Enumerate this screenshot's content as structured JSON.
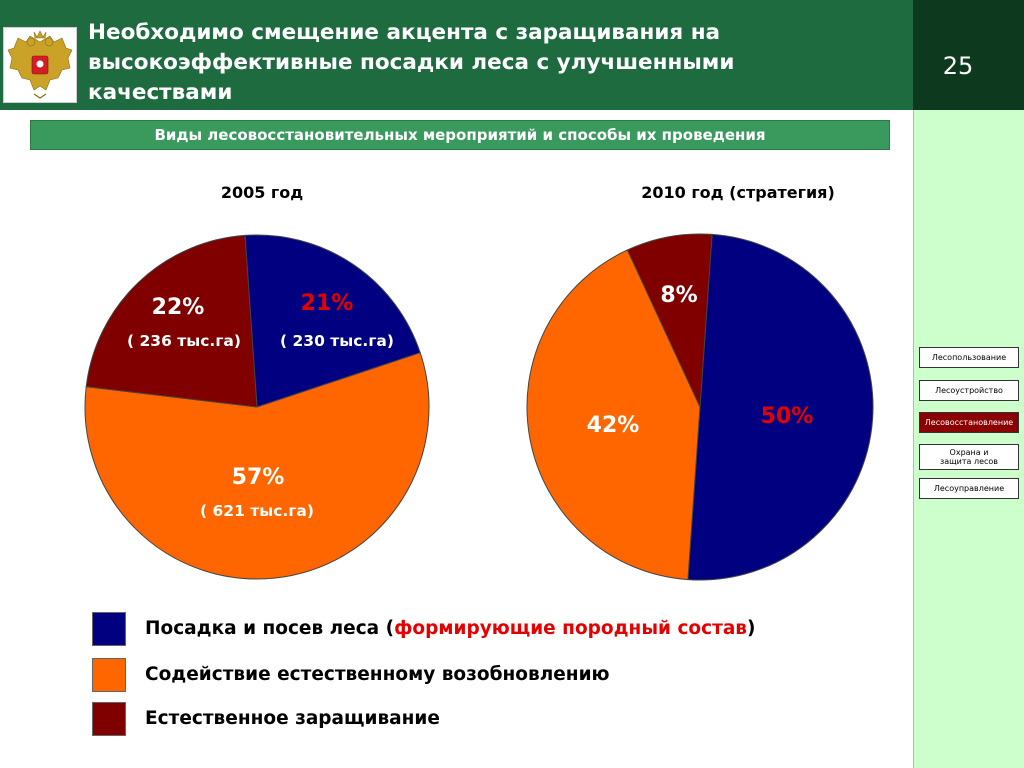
{
  "header": {
    "title": "Необходимо смещение акцента с заращивания на\nвысокоэффективные посадки леса с улучшенными\nкачествами",
    "page_number": "25"
  },
  "subtitle": "Виды лесовосстановительных мероприятий и способы их проведения",
  "colors": {
    "blue": "#000080",
    "orange": "#ff6600",
    "maroon": "#800000",
    "header_green": "#1e6b40",
    "label_red": "#e50000"
  },
  "chart_data": [
    {
      "type": "pie",
      "title": "2005 год",
      "slices": [
        {
          "label": "Посадка и посев леса",
          "value": 21,
          "display": "21%",
          "area": "( 230 тыс.га)",
          "color": "#000080",
          "label_color": "#e50000"
        },
        {
          "label": "Содействие естественному возобновлению",
          "value": 57,
          "display": "57%",
          "area": "( 621 тыс.га)",
          "color": "#ff6600",
          "label_color": "#ffffff"
        },
        {
          "label": "Естественное заращивание",
          "value": 22,
          "display": "22%",
          "area": "( 236 тыс.га)",
          "color": "#800000",
          "label_color": "#ffffff"
        }
      ]
    },
    {
      "type": "pie",
      "title": "2010 год (стратегия)",
      "slices": [
        {
          "label": "Посадка и посев леса",
          "value": 50,
          "display": "50%",
          "color": "#000080",
          "label_color": "#e50000"
        },
        {
          "label": "Содействие естественному возобновлению",
          "value": 42,
          "display": "42%",
          "color": "#ff6600",
          "label_color": "#ffffff"
        },
        {
          "label": "Естественное заращивание",
          "value": 8,
          "display": "8%",
          "color": "#800000",
          "label_color": "#ffffff"
        }
      ]
    }
  ],
  "legend": {
    "item1_main": "Посадка и посев леса (",
    "item1_highlight": "формирующие породный состав",
    "item1_close": ")",
    "item2": "Содействие естественному возобновлению",
    "item3": "Естественное заращивание"
  },
  "sidebar": {
    "items": [
      {
        "label": "Лесопользование",
        "active": false
      },
      {
        "label": "Лесоустройство",
        "active": false
      },
      {
        "label": "Лесовосстановление",
        "active": true
      },
      {
        "label": "Охрана и\nзащита  лесов",
        "active": false
      },
      {
        "label": "Лесоуправление",
        "active": false
      }
    ]
  }
}
